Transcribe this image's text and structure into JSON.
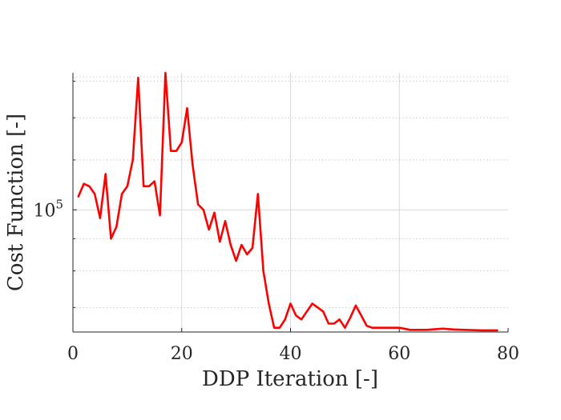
{
  "chart_data": {
    "type": "line",
    "title": "",
    "xlabel": "DDP Iteration [-]",
    "ylabel": "Cost Function [-]",
    "xlim": [
      0,
      80
    ],
    "ylim": [
      64000,
      165000
    ],
    "yscale": "log",
    "grid": true,
    "x_ticks": [
      "0",
      "20",
      "40",
      "60",
      "80"
    ],
    "y_tick_label": {
      "base": "10",
      "exponent": "5"
    },
    "color": "#ff0000",
    "series": [
      {
        "x": [
          1,
          2,
          3,
          4,
          5,
          6,
          7,
          8,
          9,
          10,
          11,
          12,
          13,
          14,
          15,
          16,
          17,
          18,
          19,
          20,
          21,
          22,
          23,
          24,
          25,
          26,
          27,
          28,
          29,
          30,
          31,
          32,
          33,
          34,
          35,
          36,
          37,
          38,
          39,
          40,
          41,
          42,
          43,
          44,
          45,
          46,
          47,
          48,
          49,
          50,
          51,
          52,
          53,
          54,
          55,
          57,
          60,
          62,
          65,
          68,
          70,
          72,
          75,
          78
        ],
        "y": [
          105000,
          110000,
          109000,
          106000,
          97000,
          114000,
          90000,
          94000,
          106000,
          109000,
          120000,
          162000,
          109000,
          109000,
          111000,
          98000,
          165000,
          124000,
          124000,
          128000,
          145000,
          118000,
          102000,
          100000,
          93000,
          99000,
          89000,
          96000,
          88000,
          83000,
          88000,
          85000,
          87000,
          106000,
          80000,
          71000,
          65000,
          65000,
          67000,
          71000,
          68000,
          67000,
          69000,
          71000,
          70000,
          69000,
          66000,
          66000,
          67000,
          65000,
          67500,
          70500,
          68000,
          65500,
          65000,
          65000,
          65000,
          64500,
          64500,
          64800,
          64600,
          64500,
          64400,
          64400
        ]
      }
    ]
  }
}
